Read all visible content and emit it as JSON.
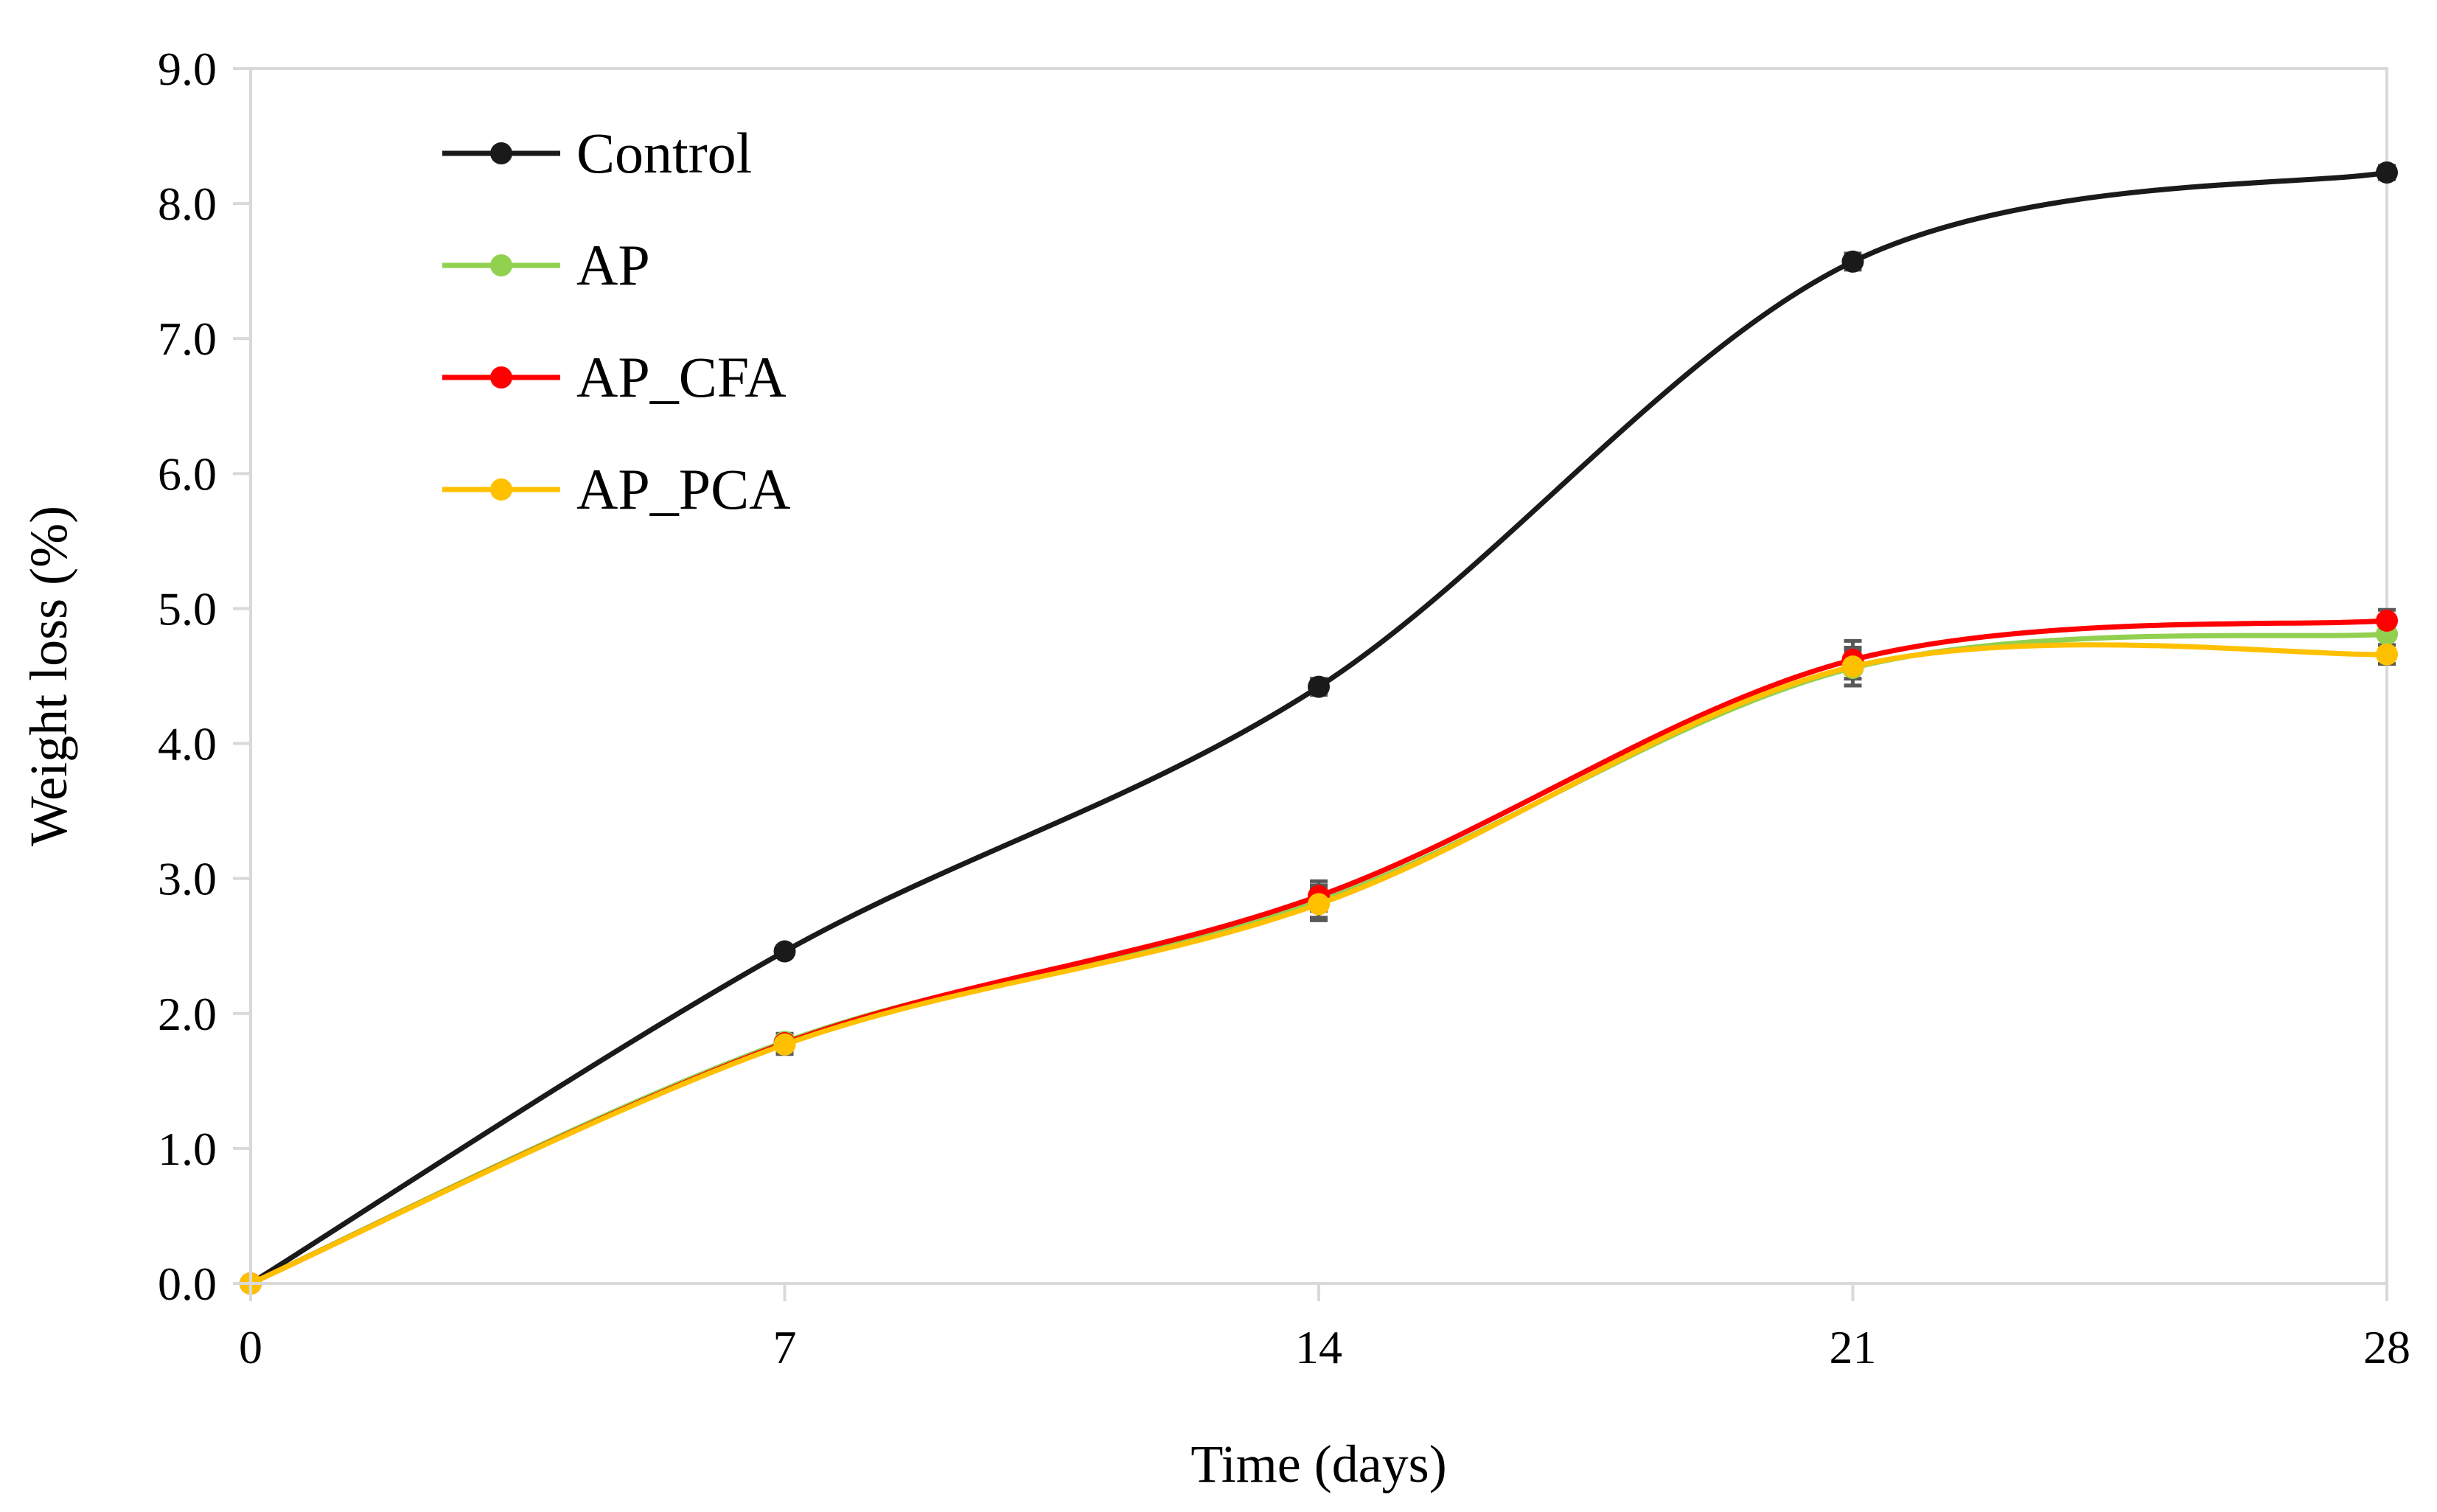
{
  "chart_data": {
    "type": "line",
    "title": "",
    "xlabel": "Time (days)",
    "ylabel": "Weight loss (%)",
    "x": [
      0,
      7,
      14,
      21,
      28
    ],
    "xlim": [
      0,
      28
    ],
    "ylim": [
      0,
      9
    ],
    "x_ticks": [
      "0",
      "7",
      "14",
      "21",
      "28"
    ],
    "y_ticks": [
      "0.0",
      "1.0",
      "2.0",
      "3.0",
      "4.0",
      "5.0",
      "6.0",
      "7.0",
      "8.0",
      "9.0"
    ],
    "grid": false,
    "legend_position": "top-left",
    "smoothed": true,
    "series": [
      {
        "name": "Control",
        "color": "#1a1a1a",
        "values": [
          0.0,
          2.46,
          4.42,
          7.57,
          8.23
        ],
        "errors": [
          0.0,
          0.04,
          0.06,
          0.06,
          0.05
        ]
      },
      {
        "name": "AP",
        "color": "#92d050",
        "values": [
          0.0,
          1.79,
          2.83,
          4.56,
          4.81
        ],
        "errors": [
          0.0,
          0.06,
          0.12,
          0.13,
          0.12
        ]
      },
      {
        "name": "AP_CFA",
        "color": "#ff0000",
        "values": [
          0.0,
          1.78,
          2.87,
          4.62,
          4.91
        ],
        "errors": [
          0.0,
          0.06,
          0.11,
          0.14,
          0.08
        ]
      },
      {
        "name": "AP_PCA",
        "color": "#ffc000",
        "values": [
          0.0,
          1.77,
          2.81,
          4.57,
          4.66
        ],
        "errors": [
          0.0,
          0.07,
          0.12,
          0.14,
          0.07
        ]
      }
    ]
  }
}
